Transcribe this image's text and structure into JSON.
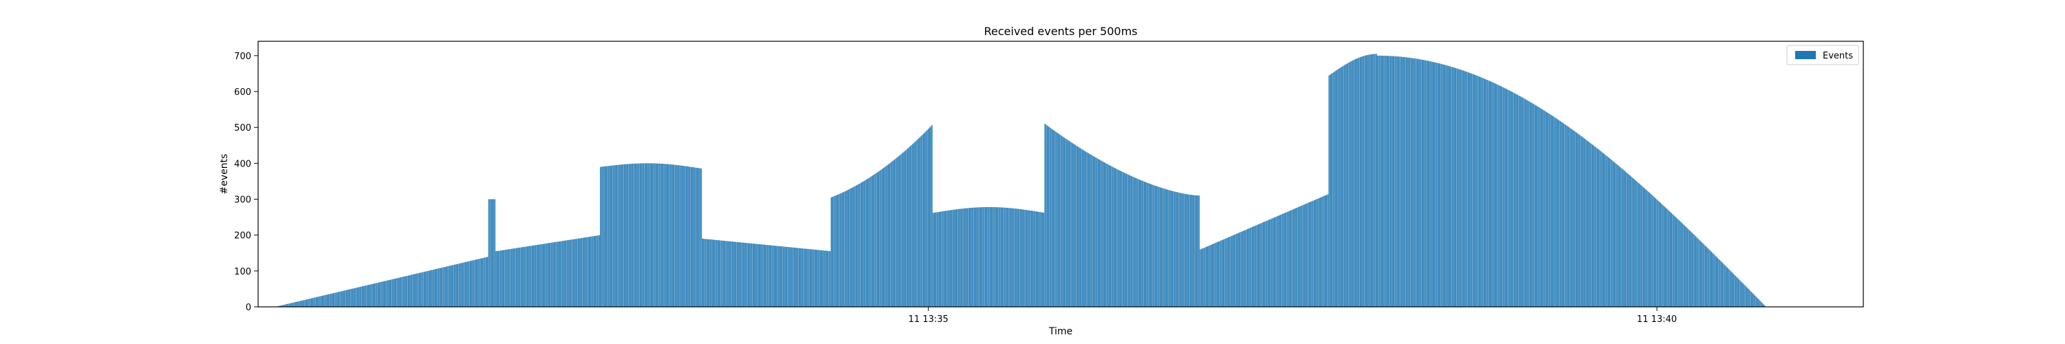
{
  "chart_data": {
    "type": "bar",
    "title": "Received events per 500ms",
    "xlabel": "Time",
    "ylabel": "#events",
    "ylim": [
      0,
      740
    ],
    "yticks": [
      0,
      100,
      200,
      300,
      400,
      500,
      600,
      700
    ],
    "xticks": [
      {
        "time": "13:35:00",
        "label": "11 13:35"
      },
      {
        "time": "13:40:00",
        "label": "11 13:40"
      }
    ],
    "xlim": [
      "13:30:24",
      "13:41:25"
    ],
    "legend": {
      "entries": [
        "Events"
      ],
      "position": "top-right"
    },
    "grid": false,
    "bar_color": "#1f77b4",
    "interval_ms": 500,
    "segments": [
      {
        "start": "13:30:31",
        "end": "13:31:59",
        "from": 0,
        "to": 140,
        "curve": "linear"
      },
      {
        "start": "13:31:59",
        "end": "13:32:02",
        "from": 300,
        "to": 300,
        "curve": "linear"
      },
      {
        "start": "13:32:02",
        "end": "13:32:45",
        "from": 155,
        "to": 200,
        "curve": "linear"
      },
      {
        "start": "13:32:45",
        "end": "13:33:27",
        "from": 390,
        "to": 385,
        "peak": 400,
        "curve": "arch"
      },
      {
        "start": "13:33:27",
        "end": "13:34:20",
        "from": 190,
        "to": 155,
        "curve": "linear"
      },
      {
        "start": "13:34:20",
        "end": "13:35:02",
        "from": 305,
        "to": 510,
        "curve": "convex"
      },
      {
        "start": "13:35:02",
        "end": "13:35:48",
        "from": 262,
        "to": 262,
        "peak": 278,
        "curve": "arch"
      },
      {
        "start": "13:35:48",
        "end": "13:36:52",
        "from": 510,
        "to": 310,
        "curve": "concave"
      },
      {
        "start": "13:36:52",
        "end": "13:37:45",
        "from": 160,
        "to": 315,
        "curve": "linear"
      },
      {
        "start": "13:37:45",
        "end": "13:38:05",
        "from": 645,
        "to": 705,
        "curve": "arch_up"
      },
      {
        "start": "13:38:05",
        "end": "13:40:45",
        "from": 700,
        "to": 0,
        "curve": "fall"
      }
    ]
  }
}
